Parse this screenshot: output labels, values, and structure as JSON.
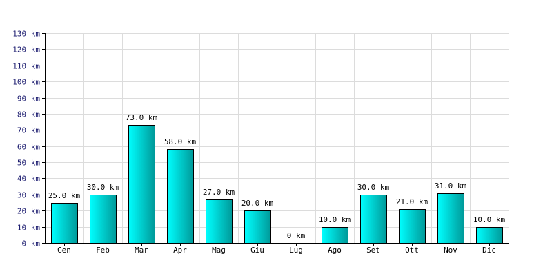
{
  "chart_data": {
    "type": "bar",
    "categories": [
      "Gen",
      "Feb",
      "Mar",
      "Apr",
      "Mag",
      "Giu",
      "Lug",
      "Ago",
      "Set",
      "Ott",
      "Nov",
      "Dic"
    ],
    "values": [
      25,
      30,
      73,
      58,
      27,
      20,
      0,
      10,
      30,
      21,
      31,
      10
    ],
    "data_labels": [
      "25.0 km",
      "30.0 km",
      "73.0 km",
      "58.0 km",
      "27.0 km",
      "20.0 km",
      "0 km",
      "10.0 km",
      "30.0 km",
      "21.0 km",
      "31.0 km",
      "10.0 km"
    ],
    "y_ticks": [
      "0 km",
      "10 km",
      "20 km",
      "30 km",
      "40 km",
      "50 km",
      "60 km",
      "70 km",
      "80 km",
      "90 km",
      "100 km",
      "110 km",
      "120 km",
      "130 km"
    ],
    "ylim": [
      0,
      130
    ],
    "grid": true,
    "colors": {
      "bar_light": "#00ffff",
      "bar_dark": "#009999",
      "tick_text": "#1a1a6e",
      "grid": "#dcdcdc"
    }
  }
}
